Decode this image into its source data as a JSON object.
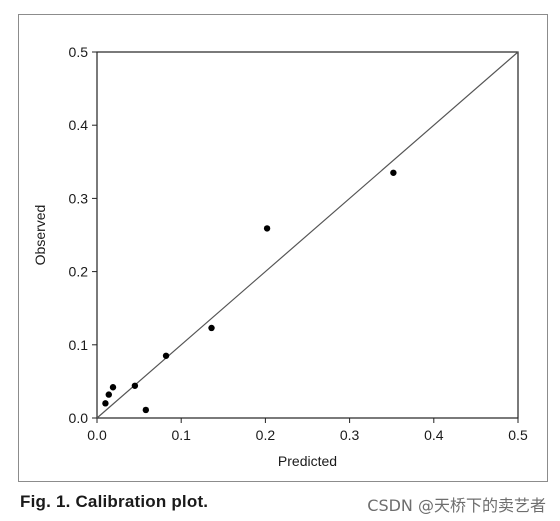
{
  "caption": "Fig. 1. Calibration plot.",
  "watermark": "CSDN @天桥下的卖艺者",
  "colors": {
    "axis": "#222222",
    "point": "#000000",
    "reference_line": "#555555",
    "frame": "#8c8c8c"
  },
  "chart_data": {
    "type": "scatter",
    "title": "",
    "xlabel": "Predicted",
    "ylabel": "Observed",
    "xlim": [
      0.0,
      0.5
    ],
    "ylim": [
      0.0,
      0.5
    ],
    "x_ticks": [
      "0.0",
      "0.1",
      "0.2",
      "0.3",
      "0.4",
      "0.5"
    ],
    "y_ticks": [
      "0.0",
      "0.1",
      "0.2",
      "0.3",
      "0.4",
      "0.5"
    ],
    "grid": false,
    "reference_line": {
      "type": "identity",
      "from": [
        0,
        0
      ],
      "to": [
        0.5,
        0.5
      ]
    },
    "points": [
      {
        "x": 0.01,
        "y": 0.02
      },
      {
        "x": 0.014,
        "y": 0.032
      },
      {
        "x": 0.019,
        "y": 0.042
      },
      {
        "x": 0.045,
        "y": 0.044
      },
      {
        "x": 0.058,
        "y": 0.011
      },
      {
        "x": 0.082,
        "y": 0.085
      },
      {
        "x": 0.136,
        "y": 0.123
      },
      {
        "x": 0.202,
        "y": 0.259
      },
      {
        "x": 0.352,
        "y": 0.335
      }
    ]
  }
}
